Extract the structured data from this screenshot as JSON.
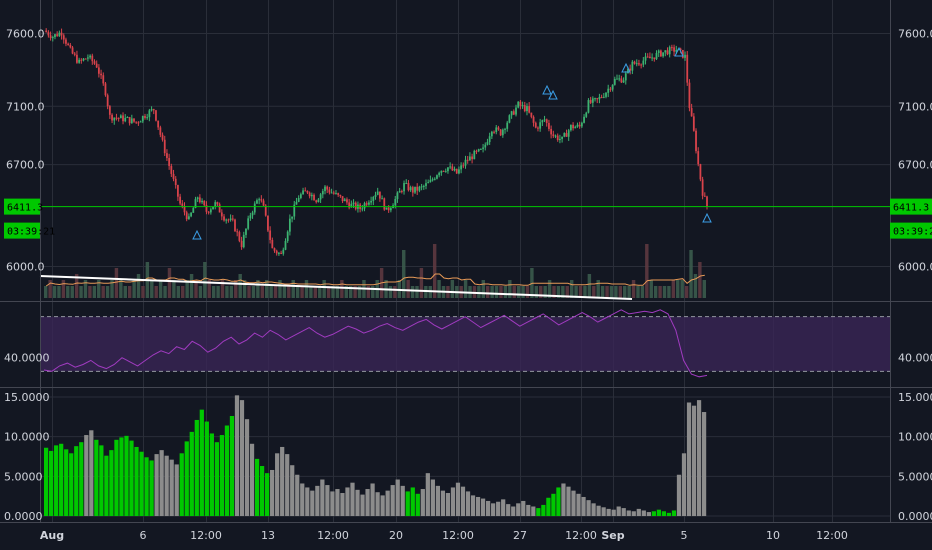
{
  "theme": {
    "background": "#131722",
    "grid": "#2a2e39",
    "up": "#26a69a",
    "down": "#ef5350",
    "up_bright": "#3cb371",
    "down_bright": "#d9434b",
    "price_line": "#00c800",
    "rsi_line": "#a03bc0",
    "rsi_band": "#3a2556",
    "osc_bar_gray": "#8c8c8c",
    "osc_bar_green": "#00c800",
    "trendline": "#ffffff",
    "volume_ma": "#e89a57",
    "triangle": "#3b9ee6"
  },
  "price_tags": {
    "last_price": "6411.3",
    "countdown": "03:39:21"
  },
  "chart_data": [
    {
      "type": "candlestick",
      "pane": "price",
      "y_ticks": [
        "7600.0",
        "7100.0",
        "6700.0",
        "6000.0"
      ],
      "y_tick_values": [
        7600,
        7100,
        6700,
        6000
      ],
      "ylim": [
        5770,
        7830
      ],
      "last_price": 6411.3,
      "x_tick_labels": [
        "Aug",
        "6",
        "12:00",
        "13",
        "12:00",
        "20",
        "12:00",
        "27",
        "12:00",
        "Sep",
        "12:00",
        "5",
        "10",
        "12:00"
      ],
      "close_path": [
        [
          0,
          7620
        ],
        [
          4,
          7580
        ],
        [
          8,
          7610
        ],
        [
          12,
          7480
        ],
        [
          16,
          7400
        ],
        [
          20,
          7440
        ],
        [
          24,
          7380
        ],
        [
          28,
          7200
        ],
        [
          30,
          7030
        ],
        [
          34,
          7020
        ],
        [
          38,
          7010
        ],
        [
          42,
          6990
        ],
        [
          46,
          7040
        ],
        [
          50,
          7080
        ],
        [
          54,
          6850
        ],
        [
          58,
          6640
        ],
        [
          62,
          6430
        ],
        [
          66,
          6320
        ],
        [
          70,
          6480
        ],
        [
          74,
          6380
        ],
        [
          78,
          6430
        ],
        [
          82,
          6340
        ],
        [
          86,
          6300
        ],
        [
          90,
          6150
        ],
        [
          94,
          6360
        ],
        [
          98,
          6480
        ],
        [
          100,
          6400
        ],
        [
          104,
          6120
        ],
        [
          108,
          6080
        ],
        [
          112,
          6320
        ],
        [
          116,
          6480
        ],
        [
          120,
          6520
        ],
        [
          124,
          6460
        ],
        [
          128,
          6540
        ],
        [
          132,
          6500
        ],
        [
          136,
          6460
        ],
        [
          140,
          6420
        ],
        [
          144,
          6400
        ],
        [
          148,
          6460
        ],
        [
          152,
          6520
        ],
        [
          156,
          6380
        ],
        [
          160,
          6460
        ],
        [
          164,
          6560
        ],
        [
          168,
          6520
        ],
        [
          172,
          6540
        ],
        [
          176,
          6580
        ],
        [
          180,
          6660
        ],
        [
          184,
          6680
        ],
        [
          188,
          6640
        ],
        [
          192,
          6720
        ],
        [
          196,
          6770
        ],
        [
          200,
          6800
        ],
        [
          204,
          6950
        ],
        [
          208,
          6920
        ],
        [
          212,
          7020
        ],
        [
          216,
          7110
        ],
        [
          220,
          7080
        ],
        [
          224,
          6950
        ],
        [
          228,
          7010
        ],
        [
          232,
          6900
        ],
        [
          236,
          6870
        ],
        [
          240,
          6960
        ],
        [
          244,
          6960
        ],
        [
          248,
          7120
        ],
        [
          252,
          7140
        ],
        [
          256,
          7200
        ],
        [
          260,
          7280
        ],
        [
          264,
          7290
        ],
        [
          268,
          7390
        ],
        [
          272,
          7410
        ],
        [
          276,
          7430
        ],
        [
          280,
          7460
        ],
        [
          284,
          7480
        ],
        [
          288,
          7490
        ],
        [
          292,
          7440
        ],
        [
          294,
          7100
        ],
        [
          296,
          6920
        ],
        [
          298,
          6700
        ],
        [
          300,
          6510
        ],
        [
          302,
          6411
        ]
      ]
    },
    {
      "type": "line",
      "pane": "rsi",
      "y_ticks": [
        "40.0000"
      ],
      "y_tick_values": [
        40
      ],
      "ylim": [
        20,
        80
      ],
      "band": [
        30,
        70
      ],
      "series": [
        {
          "values": [
            31,
            30,
            34,
            36,
            33,
            35,
            38,
            34,
            32,
            35,
            40,
            37,
            34,
            38,
            42,
            45,
            43,
            48,
            46,
            52,
            49,
            44,
            47,
            52,
            55,
            50,
            53,
            58,
            55,
            60,
            57,
            53,
            56,
            59,
            62,
            58,
            55,
            57,
            60,
            63,
            61,
            58,
            60,
            63,
            65,
            62,
            60,
            63,
            66,
            68,
            64,
            61,
            64,
            67,
            70,
            66,
            62,
            65,
            68,
            71,
            67,
            63,
            66,
            69,
            72,
            68,
            64,
            67,
            70,
            73,
            70,
            66,
            69,
            72,
            75,
            72,
            73,
            74,
            73,
            75,
            72,
            60,
            38,
            28,
            26,
            27
          ]
        }
      ]
    },
    {
      "type": "bar",
      "pane": "oscillator",
      "y_ticks": [
        "15.0000",
        "10.0000",
        "5.0000",
        "0.0000"
      ],
      "y_tick_values": [
        15,
        10,
        5,
        0
      ],
      "ylim": [
        -0.5,
        16
      ],
      "series": [
        {
          "values": [
            8.6,
            8.2,
            8.9,
            9.1,
            8.4,
            7.9,
            8.8,
            9.3,
            10.2,
            10.8,
            9.6,
            8.9,
            7.6,
            8.3,
            9.6,
            9.9,
            10.1,
            9.5,
            8.7,
            8.1,
            7.4,
            7.0,
            7.8,
            8.3,
            7.6,
            7.1,
            6.5,
            7.9,
            9.4,
            10.6,
            12.1,
            13.4,
            11.9,
            10.4,
            9.3,
            10.2,
            11.4,
            12.6,
            15.2,
            14.6,
            12.2,
            9.1,
            7.2,
            6.3,
            5.4,
            5.8,
            7.9,
            8.7,
            7.8,
            6.4,
            5.2,
            4.1,
            3.6,
            3.2,
            3.8,
            4.6,
            3.9,
            3.1,
            3.4,
            2.9,
            3.6,
            4.2,
            3.3,
            2.7,
            3.4,
            4.1,
            3.0,
            2.6,
            3.2,
            3.9,
            4.6,
            3.8,
            3.1,
            3.6,
            2.8,
            3.4,
            5.4,
            4.6,
            3.8,
            3.2,
            2.9,
            3.6,
            4.2,
            3.7,
            3.1,
            2.6,
            2.4,
            2.2,
            1.9,
            1.6,
            1.8,
            2.1,
            1.5,
            1.2,
            1.6,
            1.9,
            1.4,
            1.2,
            1.0,
            1.4,
            2.3,
            2.8,
            3.6,
            4.1,
            3.7,
            3.2,
            2.8,
            2.4,
            2.0,
            1.6,
            1.3,
            1.1,
            0.9,
            0.8,
            1.2,
            1.0,
            0.7,
            0.6,
            0.9,
            0.7,
            0.5,
            0.6,
            0.8,
            0.6,
            0.4,
            0.7,
            5.2,
            7.9,
            14.3,
            13.9,
            14.6,
            13.1
          ],
          "green_ranges": [
            [
              0,
              7
            ],
            [
              10,
              21
            ],
            [
              27,
              37
            ],
            [
              42,
              44
            ],
            [
              72,
              74
            ],
            [
              98,
              102
            ],
            [
              121,
              125
            ]
          ]
        }
      ]
    },
    {
      "type": "bar",
      "pane": "volume",
      "series": [
        {
          "values": [
            2,
            3,
            2,
            2,
            3,
            2,
            2,
            4,
            2,
            3,
            2,
            2,
            3,
            2,
            2,
            3,
            5,
            3,
            2,
            2,
            3,
            4,
            2,
            6,
            3,
            2,
            3,
            2,
            5,
            3,
            2,
            2,
            3,
            4,
            3,
            2,
            6,
            3,
            2,
            2,
            3,
            2,
            2,
            3,
            4,
            3,
            2,
            2,
            3,
            2,
            3,
            2,
            2,
            3,
            2,
            2,
            3,
            2,
            2,
            3,
            2,
            2,
            2,
            3,
            2,
            2,
            2,
            3,
            2,
            2,
            2,
            2,
            3,
            2,
            2,
            3,
            5,
            3,
            2,
            2,
            3,
            8,
            3,
            2,
            2,
            5,
            2,
            2,
            9,
            3,
            2,
            2,
            3,
            2,
            2,
            3,
            2,
            2,
            2,
            3,
            2,
            2,
            2,
            2,
            2,
            3,
            2,
            2,
            2,
            2,
            5,
            2,
            2,
            2,
            3,
            2,
            2,
            2,
            2,
            3,
            2,
            2,
            2,
            4,
            2,
            3,
            2,
            2,
            2,
            2,
            2,
            2,
            2,
            3,
            2,
            2,
            9,
            3,
            2,
            2,
            2,
            2,
            3,
            3,
            3,
            2,
            8,
            4,
            6,
            3
          ]
        }
      ]
    }
  ]
}
